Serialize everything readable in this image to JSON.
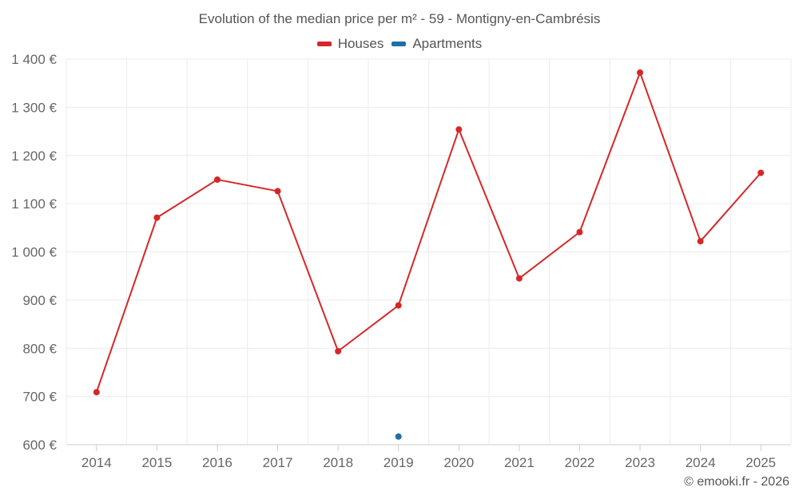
{
  "chart_data": {
    "type": "line",
    "title": "Evolution of the median price per m² - 59 - Montigny-en-Cambrésis",
    "categories": [
      "2014",
      "2015",
      "2016",
      "2017",
      "2018",
      "2019",
      "2020",
      "2021",
      "2022",
      "2023",
      "2024",
      "2025"
    ],
    "ylim": [
      600,
      1400
    ],
    "yticks": [
      600,
      700,
      800,
      900,
      1000,
      1100,
      1200,
      1300,
      1400
    ],
    "ytick_labels": [
      "600 €",
      "700 €",
      "800 €",
      "900 €",
      "1 000 €",
      "1 100 €",
      "1 200 €",
      "1 300 €",
      "1 400 €"
    ],
    "grid": true,
    "legend_position": "top-center",
    "series": [
      {
        "name": "Houses",
        "color": "#d62728",
        "values": [
          709,
          1071,
          1150,
          1126,
          794,
          889,
          1254,
          945,
          1041,
          1372,
          1022,
          1164
        ]
      },
      {
        "name": "Apartments",
        "color": "#1f6fa8",
        "values": [
          null,
          null,
          null,
          null,
          null,
          617,
          null,
          null,
          null,
          null,
          null,
          null
        ]
      }
    ]
  },
  "footer": {
    "credit": "© emooki.fr - 2026"
  }
}
